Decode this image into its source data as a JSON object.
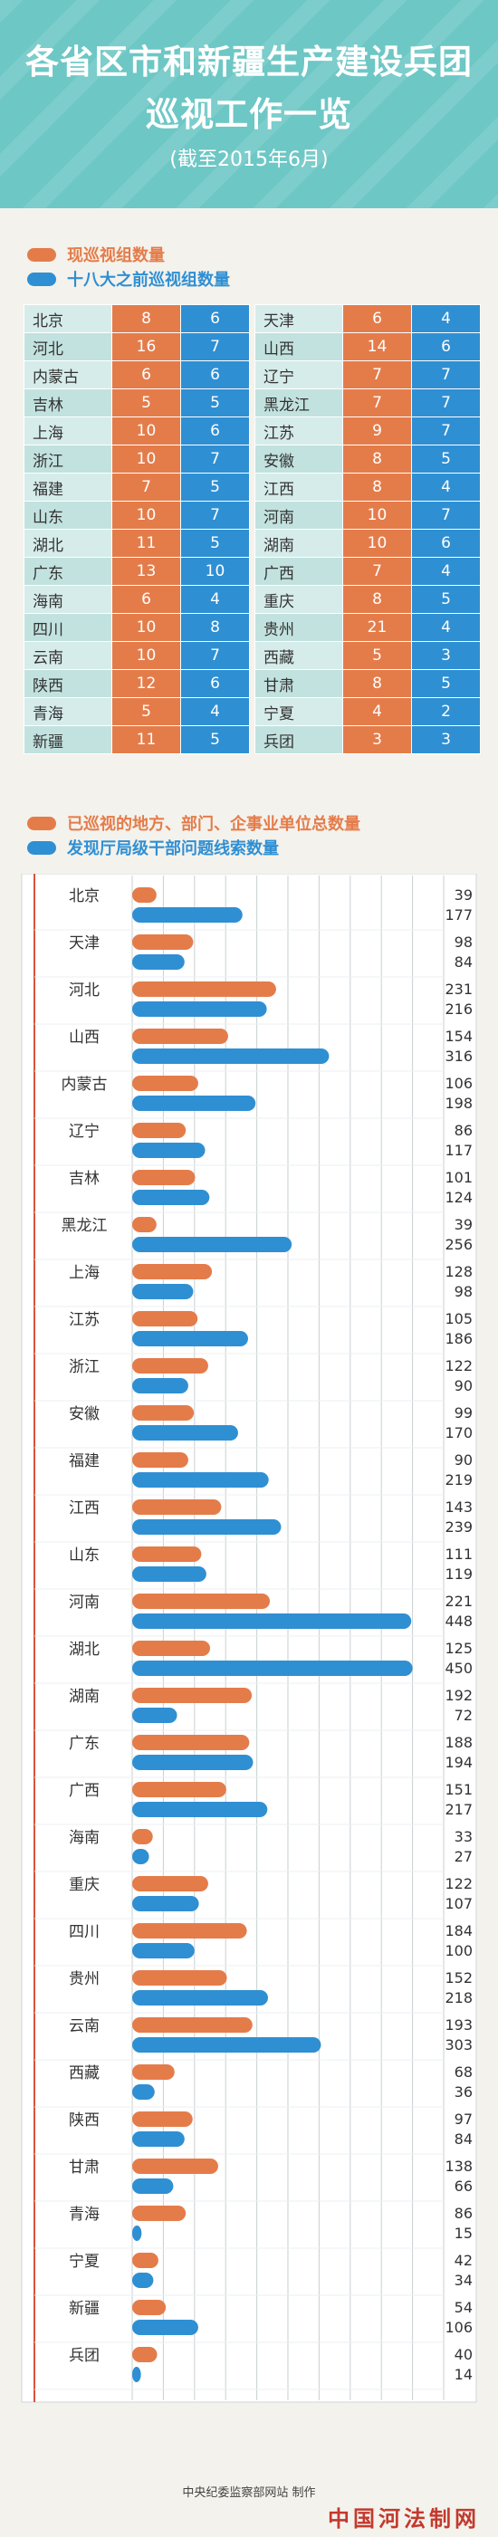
{
  "header": {
    "title_line1": "各省区市和新疆生产建设兵团",
    "title_line2": "巡视工作一览",
    "subtitle": "(截至2015年6月)"
  },
  "colors": {
    "header_bg": "#6dc7c5",
    "orange": "#e47c4a",
    "blue": "#2f8fd3"
  },
  "legend_table": {
    "current": "现巡视组数量",
    "before": "十八大之前巡视组数量"
  },
  "legend_chart": {
    "inspected": "已巡视的地方、部门、企事业单位总数量",
    "clues": "发现厅局级干部问题线索数量"
  },
  "table_left": [
    {
      "name": "北京",
      "current": "8",
      "before": "6"
    },
    {
      "name": "河北",
      "current": "16",
      "before": "7"
    },
    {
      "name": "内蒙古",
      "current": "6",
      "before": "6"
    },
    {
      "name": "吉林",
      "current": "5",
      "before": "5"
    },
    {
      "name": "上海",
      "current": "10",
      "before": "6"
    },
    {
      "name": "浙江",
      "current": "10",
      "before": "7"
    },
    {
      "name": "福建",
      "current": "7",
      "before": "5"
    },
    {
      "name": "山东",
      "current": "10",
      "before": "7"
    },
    {
      "name": "湖北",
      "current": "11",
      "before": "5"
    },
    {
      "name": "广东",
      "current": "13",
      "before": "10"
    },
    {
      "name": "海南",
      "current": "6",
      "before": "4"
    },
    {
      "name": "四川",
      "current": "10",
      "before": "8"
    },
    {
      "name": "云南",
      "current": "10",
      "before": "7"
    },
    {
      "name": "陕西",
      "current": "12",
      "before": "6"
    },
    {
      "name": "青海",
      "current": "5",
      "before": "4"
    },
    {
      "name": "新疆",
      "current": "11",
      "before": "5"
    }
  ],
  "table_right": [
    {
      "name": "天津",
      "current": "6",
      "before": "4"
    },
    {
      "name": "山西",
      "current": "14",
      "before": "6"
    },
    {
      "name": "辽宁",
      "current": "7",
      "before": "7"
    },
    {
      "name": "黑龙江",
      "current": "7",
      "before": "7"
    },
    {
      "name": "江苏",
      "current": "9",
      "before": "7"
    },
    {
      "name": "安徽",
      "current": "8",
      "before": "5"
    },
    {
      "name": "江西",
      "current": "8",
      "before": "4"
    },
    {
      "name": "河南",
      "current": "10",
      "before": "7"
    },
    {
      "name": "湖南",
      "current": "10",
      "before": "6"
    },
    {
      "name": "广西",
      "current": "7",
      "before": "4"
    },
    {
      "name": "重庆",
      "current": "8",
      "before": "5"
    },
    {
      "name": "贵州",
      "current": "21",
      "before": "4"
    },
    {
      "name": "西藏",
      "current": "5",
      "before": "3"
    },
    {
      "name": "甘肃",
      "current": "8",
      "before": "5"
    },
    {
      "name": "宁夏",
      "current": "4",
      "before": "2"
    },
    {
      "name": "兵团",
      "current": "3",
      "before": "3"
    }
  ],
  "chart_data": {
    "type": "bar",
    "orientation": "horizontal",
    "categories": [
      "北京",
      "天津",
      "河北",
      "山西",
      "内蒙古",
      "辽宁",
      "吉林",
      "黑龙江",
      "上海",
      "江苏",
      "浙江",
      "安徽",
      "福建",
      "江西",
      "山东",
      "河南",
      "湖北",
      "湖南",
      "广东",
      "广西",
      "海南",
      "重庆",
      "四川",
      "贵州",
      "云南",
      "西藏",
      "陕西",
      "甘肃",
      "青海",
      "宁夏",
      "新疆",
      "兵团"
    ],
    "series": [
      {
        "name": "已巡视的地方、部门、企事业单位总数量",
        "color": "#e47c4a",
        "values": [
          39,
          98,
          231,
          154,
          106,
          86,
          101,
          39,
          128,
          105,
          122,
          99,
          90,
          143,
          111,
          221,
          125,
          192,
          188,
          151,
          33,
          122,
          184,
          152,
          193,
          68,
          97,
          138,
          86,
          42,
          54,
          40
        ]
      },
      {
        "name": "发现厅局级干部问题线索数量",
        "color": "#2f8fd3",
        "values": [
          177,
          84,
          216,
          316,
          198,
          117,
          124,
          256,
          98,
          186,
          90,
          170,
          219,
          239,
          119,
          448,
          450,
          72,
          194,
          217,
          27,
          107,
          100,
          218,
          303,
          36,
          84,
          66,
          15,
          34,
          106,
          14
        ]
      }
    ],
    "xlim": [
      0,
      500
    ],
    "grid": true,
    "legend": "top-left"
  },
  "credit": "中央纪委监察部网站 制作",
  "watermark": "中国河法制网"
}
